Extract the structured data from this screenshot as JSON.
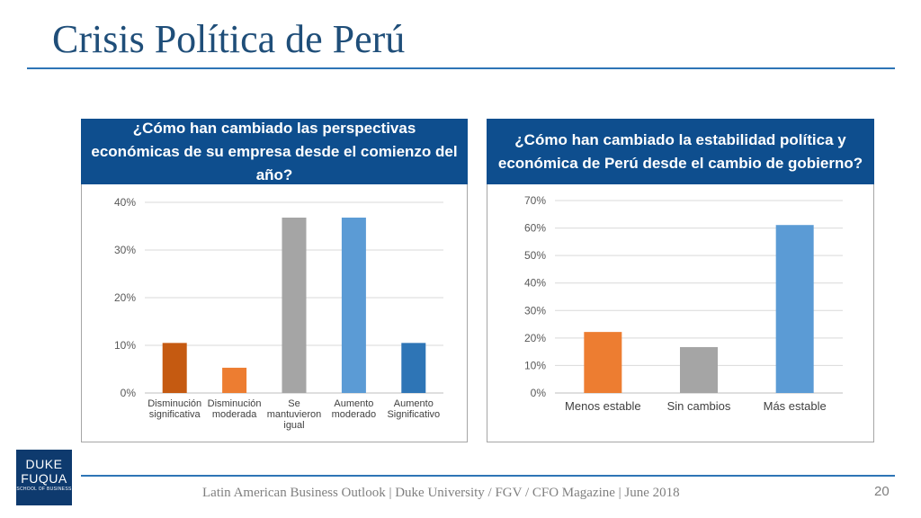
{
  "page": {
    "title": "Crisis Política de Perú",
    "footer": "Latin American Business Outlook | Duke University / FGV / CFO Magazine | June 2018",
    "page_number": "20"
  },
  "logo": {
    "line1": "DUKE",
    "line2": "FUQUA",
    "line3": "SCHOOL OF BUSINESS"
  },
  "colors": {
    "title": "#1f4e79",
    "header_bg": "#0e4e8e",
    "rule": "#2e75b6"
  },
  "chart_data": [
    {
      "type": "bar",
      "title": "¿Cómo han cambiado las perspectivas económicas de su empresa desde el comienzo del año?",
      "categories": [
        "Disminución significativa",
        "Disminución moderada",
        "Se mantuvieron igual",
        "Aumento moderado",
        "Aumento Significativo"
      ],
      "category_lines": [
        [
          "Disminución",
          "significativa"
        ],
        [
          "Disminución",
          "moderada"
        ],
        [
          "Se",
          "mantuvieron",
          "igual"
        ],
        [
          "Aumento",
          "moderado"
        ],
        [
          "Aumento",
          "Significativo"
        ]
      ],
      "values": [
        10.5,
        5.3,
        36.8,
        36.8,
        10.5
      ],
      "colors": [
        "#c55a11",
        "#ed7d31",
        "#a5a5a5",
        "#5b9bd5",
        "#2e75b6"
      ],
      "ylim": [
        0,
        40
      ],
      "yticks": [
        0,
        10,
        20,
        30,
        40
      ],
      "ytick_labels": [
        "0%",
        "10%",
        "20%",
        "30%",
        "40%"
      ],
      "grid": true,
      "legend": "none"
    },
    {
      "type": "bar",
      "title": "¿Cómo han cambiado la estabilidad política y económica de Perú desde el cambio de gobierno?",
      "categories": [
        "Menos estable",
        "Sin cambios",
        "Más estable"
      ],
      "category_lines": [
        [
          "Menos estable"
        ],
        [
          "Sin cambios"
        ],
        [
          "Más estable"
        ]
      ],
      "values": [
        22.2,
        16.7,
        61.1
      ],
      "colors": [
        "#ed7d31",
        "#a5a5a5",
        "#5b9bd5"
      ],
      "ylim": [
        0,
        70
      ],
      "yticks": [
        0,
        10,
        20,
        30,
        40,
        50,
        60,
        70
      ],
      "ytick_labels": [
        "0%",
        "10%",
        "20%",
        "30%",
        "40%",
        "50%",
        "60%",
        "70%"
      ],
      "grid": true,
      "legend": "none"
    }
  ]
}
